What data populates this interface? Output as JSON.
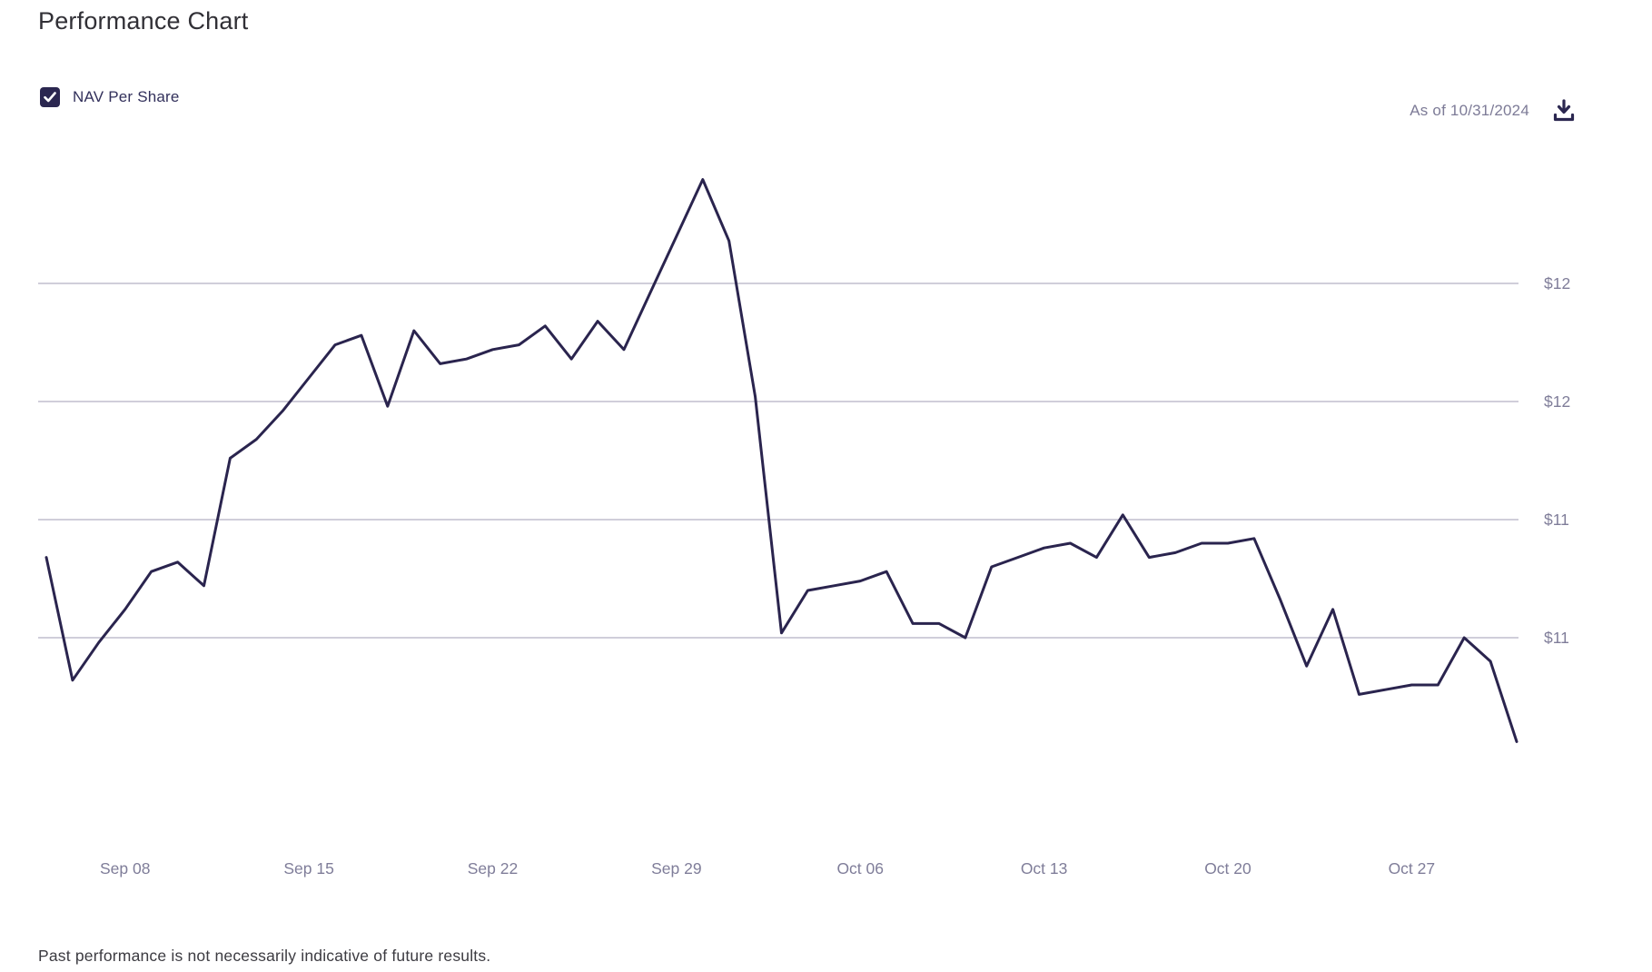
{
  "header": {
    "title": "Performance Chart"
  },
  "legend": {
    "label": "NAV Per Share",
    "checked": true,
    "checkbox_icon": "checkmark-icon"
  },
  "toolbar": {
    "as_of": "As of 10/31/2024",
    "download_icon": "download-icon"
  },
  "footer": {
    "disclaimer": "Past performance is not necessarily indicative of future results."
  },
  "colors": {
    "line": "#2a244e",
    "grid": "#b3b1c3",
    "axis_text": "#7f7d99",
    "accent_dark": "#2b2750",
    "title_text": "#313036",
    "as_of_text": "#7d7b97",
    "disclaimer_text": "#3c3b41",
    "check_color": "#ffffff"
  },
  "chart_data": {
    "type": "line",
    "series": [
      {
        "name": "NAV Per Share",
        "dates": [
          "Sep 05",
          "Sep 06",
          "Sep 07",
          "Sep 08",
          "Sep 09",
          "Sep 10",
          "Sep 11",
          "Sep 12",
          "Sep 13",
          "Sep 14",
          "Sep 15",
          "Sep 16",
          "Sep 17",
          "Sep 18",
          "Sep 19",
          "Sep 20",
          "Sep 21",
          "Sep 22",
          "Sep 23",
          "Sep 24",
          "Sep 25",
          "Sep 26",
          "Sep 27",
          "Sep 28",
          "Sep 29",
          "Sep 30",
          "Oct 01",
          "Oct 02",
          "Oct 03",
          "Oct 04",
          "Oct 05",
          "Oct 06",
          "Oct 07",
          "Oct 08",
          "Oct 09",
          "Oct 10",
          "Oct 11",
          "Oct 12",
          "Oct 13",
          "Oct 14",
          "Oct 15",
          "Oct 16",
          "Oct 17",
          "Oct 18",
          "Oct 19",
          "Oct 20",
          "Oct 21",
          "Oct 22",
          "Oct 23",
          "Oct 24",
          "Oct 25",
          "Oct 26",
          "Oct 27",
          "Oct 28",
          "Oct 29",
          "Oct 30",
          "Oct 31"
        ],
        "values": [
          11.17,
          10.91,
          10.99,
          11.06,
          11.14,
          11.16,
          11.11,
          11.38,
          11.42,
          11.48,
          11.55,
          11.62,
          11.64,
          11.49,
          11.65,
          11.58,
          11.59,
          11.61,
          11.62,
          11.66,
          11.59,
          11.67,
          11.61,
          11.73,
          11.85,
          11.97,
          11.84,
          11.51,
          11.01,
          11.1,
          11.11,
          11.12,
          11.14,
          11.03,
          11.03,
          11.0,
          11.15,
          11.17,
          11.19,
          11.2,
          11.17,
          11.26,
          11.17,
          11.18,
          11.2,
          11.2,
          11.21,
          11.08,
          10.94,
          11.06,
          10.88,
          10.89,
          10.9,
          10.9,
          11.0,
          10.95,
          10.78
        ]
      }
    ],
    "y_gridlines": [
      {
        "value": 11.75,
        "label": "$12"
      },
      {
        "value": 11.5,
        "label": "$12"
      },
      {
        "value": 11.25,
        "label": "$11"
      },
      {
        "value": 11.0,
        "label": "$11"
      }
    ],
    "x_ticks": [
      {
        "label": "Sep 08",
        "index": 3
      },
      {
        "label": "Sep 15",
        "index": 10
      },
      {
        "label": "Sep 22",
        "index": 17
      },
      {
        "label": "Sep 29",
        "index": 24
      },
      {
        "label": "Oct 06",
        "index": 31
      },
      {
        "label": "Oct 13",
        "index": 38
      },
      {
        "label": "Oct 20",
        "index": 45
      },
      {
        "label": "Oct 27",
        "index": 52
      }
    ],
    "title": "Performance Chart",
    "legend_position": "top-left",
    "grid": "horizontal-only",
    "y_axis_side": "right",
    "ylim": [
      10.7,
      12.05
    ]
  }
}
